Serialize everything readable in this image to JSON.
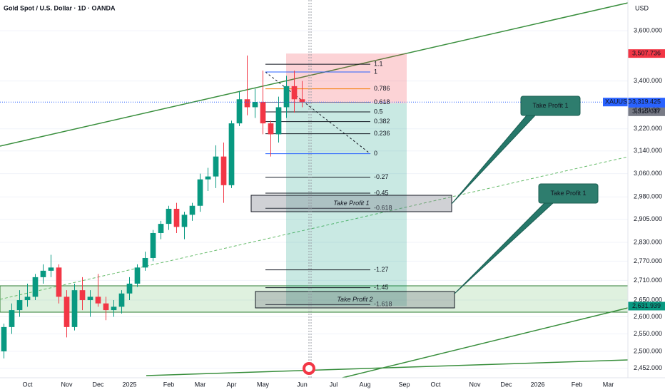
{
  "chart_data": {
    "type": "candlestick",
    "title": "Gold Spot / U.S. Dollar · 1D · OANDA",
    "currency": "USD",
    "symbol": "XAUUSD",
    "countdown": "14:29:06",
    "categories": [
      null,
      null,
      null,
      "Oct",
      null,
      null,
      null,
      null,
      "Nov",
      null,
      null,
      null,
      "Dec",
      null,
      null,
      null,
      "2025",
      null,
      null,
      null,
      null,
      "Feb",
      null,
      null,
      null,
      "Mar",
      null,
      null,
      null,
      "Apr",
      null,
      null,
      null,
      "May",
      null,
      null,
      null,
      null,
      "Jun",
      null,
      null,
      null,
      "Jul",
      null,
      null,
      null,
      "Aug",
      null,
      null,
      null,
      null,
      "Sep",
      null,
      null,
      null,
      "Oct",
      null,
      null,
      null,
      null,
      "Nov",
      null,
      null,
      null,
      "Dec",
      null,
      null,
      null,
      "2026",
      null,
      null,
      null,
      null,
      "Feb",
      null,
      null,
      null,
      "Mar",
      null,
      null
    ],
    "open": [
      2500,
      2570,
      2620,
      2650,
      2660,
      2720,
      2740,
      2750,
      2660,
      2570,
      2680,
      2650,
      2660,
      2640,
      2620,
      2630,
      2670,
      2700,
      2750,
      2780,
      2860,
      2890,
      2940,
      2880,
      2920,
      2950,
      3040,
      3050,
      3120,
      3020,
      3240,
      3330,
      3300,
      3320,
      3240,
      3200,
      3300,
      3380,
      3330,
      null,
      null,
      null,
      null,
      null,
      null,
      null,
      null,
      null,
      null,
      null,
      null,
      null,
      null,
      null,
      null,
      null,
      null,
      null,
      null,
      null,
      null,
      null,
      null,
      null,
      null,
      null,
      null,
      null,
      null,
      null,
      null,
      null,
      null,
      null,
      null,
      null,
      null,
      null,
      null,
      null
    ],
    "high": [
      2580,
      2640,
      2680,
      2700,
      2730,
      2760,
      2790,
      2760,
      2680,
      2700,
      2720,
      2680,
      2730,
      2660,
      2650,
      2680,
      2720,
      2760,
      2800,
      2870,
      2900,
      2950,
      2960,
      2930,
      2960,
      3060,
      3080,
      3160,
      3170,
      3250,
      3360,
      3500,
      3370,
      3440,
      3250,
      3340,
      3420,
      3440,
      3400,
      null,
      null,
      null,
      null,
      null,
      null,
      null,
      null,
      null,
      null,
      null,
      null,
      null,
      null,
      null,
      null,
      null,
      null,
      null,
      null,
      null,
      null,
      null,
      null,
      null,
      null,
      null,
      null,
      null,
      null,
      null,
      null,
      null,
      null,
      null,
      null,
      null,
      null,
      null,
      null,
      null
    ],
    "low": [
      2480,
      2550,
      2600,
      2630,
      2650,
      2700,
      2720,
      2640,
      2540,
      2560,
      2620,
      2600,
      2630,
      2590,
      2600,
      2610,
      2650,
      2690,
      2740,
      2770,
      2840,
      2870,
      2860,
      2840,
      2900,
      2930,
      3000,
      3010,
      2960,
      3010,
      3230,
      3270,
      3260,
      3200,
      3120,
      3170,
      3260,
      3280,
      3300,
      null,
      null,
      null,
      null,
      null,
      null,
      null,
      null,
      null,
      null,
      null,
      null,
      null,
      null,
      null,
      null,
      null,
      null,
      null,
      null,
      null,
      null,
      null,
      null,
      null,
      null,
      null,
      null,
      null,
      null,
      null,
      null,
      null,
      null,
      null,
      null,
      null,
      null,
      null,
      null,
      null
    ],
    "close": [
      2570,
      2620,
      2650,
      2660,
      2720,
      2740,
      2750,
      2660,
      2570,
      2680,
      2650,
      2660,
      2640,
      2620,
      2630,
      2670,
      2700,
      2750,
      2780,
      2860,
      2890,
      2940,
      2880,
      2920,
      2950,
      3040,
      3050,
      3120,
      3020,
      3240,
      3330,
      3300,
      3320,
      3240,
      3200,
      3300,
      3380,
      3330,
      3319.425,
      null,
      null,
      null,
      null,
      null,
      null,
      null,
      null,
      null,
      null,
      null,
      null,
      null,
      null,
      null,
      null,
      null,
      null,
      null,
      null,
      null,
      null,
      null,
      null,
      null,
      null,
      null,
      null,
      null,
      null,
      null,
      null,
      null,
      null,
      null,
      null,
      null,
      null,
      null,
      null,
      null
    ],
    "up_color": "#089981",
    "down_color": "#f23645",
    "log_scale": true,
    "ylim": [
      2426,
      3728
    ],
    "yticks": [
      {
        "value": 3600,
        "label": "3,600.000"
      },
      {
        "value": 3400,
        "label": "3,400.000"
      },
      {
        "value": 3220,
        "label": "3,220.000"
      },
      {
        "value": 3140,
        "label": "3,140.000"
      },
      {
        "value": 3060,
        "label": "3,060.000"
      },
      {
        "value": 2980,
        "label": "2,980.000"
      },
      {
        "value": 2905,
        "label": "2,905.000"
      },
      {
        "value": 2830,
        "label": "2,830.000"
      },
      {
        "value": 2770,
        "label": "2,770.000"
      },
      {
        "value": 2710,
        "label": "2,710.000"
      },
      {
        "value": 2650,
        "label": "2,650.000"
      },
      {
        "value": 2600,
        "label": "2,600.000"
      },
      {
        "value": 2550,
        "label": "2,550.000"
      },
      {
        "value": 2500,
        "label": "2,500.000"
      },
      {
        "value": 2452,
        "label": "2,452.000"
      }
    ],
    "price_labels": [
      {
        "value": 3507.736,
        "label": "3,507.736",
        "color": "#f23645"
      },
      {
        "value": 3319.425,
        "label": "3,319.425",
        "color": "#2962ff"
      },
      {
        "value": 3315.017,
        "label": "3,315.017",
        "color": "#787b86"
      },
      {
        "value": 2631.939,
        "label": "2,631.939",
        "color": "#089981"
      }
    ],
    "fib": {
      "p0": 3130,
      "p1": 3435,
      "levels": [
        1.1,
        1,
        0.786,
        0.618,
        0.5,
        0.382,
        0.236,
        0,
        -0.27,
        -0.45,
        -0.618,
        -1.27,
        -1.45,
        -1.618
      ],
      "colors": [
        "#131722",
        "#2962ff",
        "#f57c00",
        "#787b86",
        "#131722",
        "#131722",
        "#131722",
        "#2962ff",
        "#131722",
        "#131722",
        "#131722",
        "#131722",
        "#131722",
        "#131722"
      ]
    },
    "zones": [
      "Take Profit 1",
      "Take Profit 2"
    ],
    "callouts": [
      "Take Profit 1",
      "Take Profit 1"
    ]
  }
}
